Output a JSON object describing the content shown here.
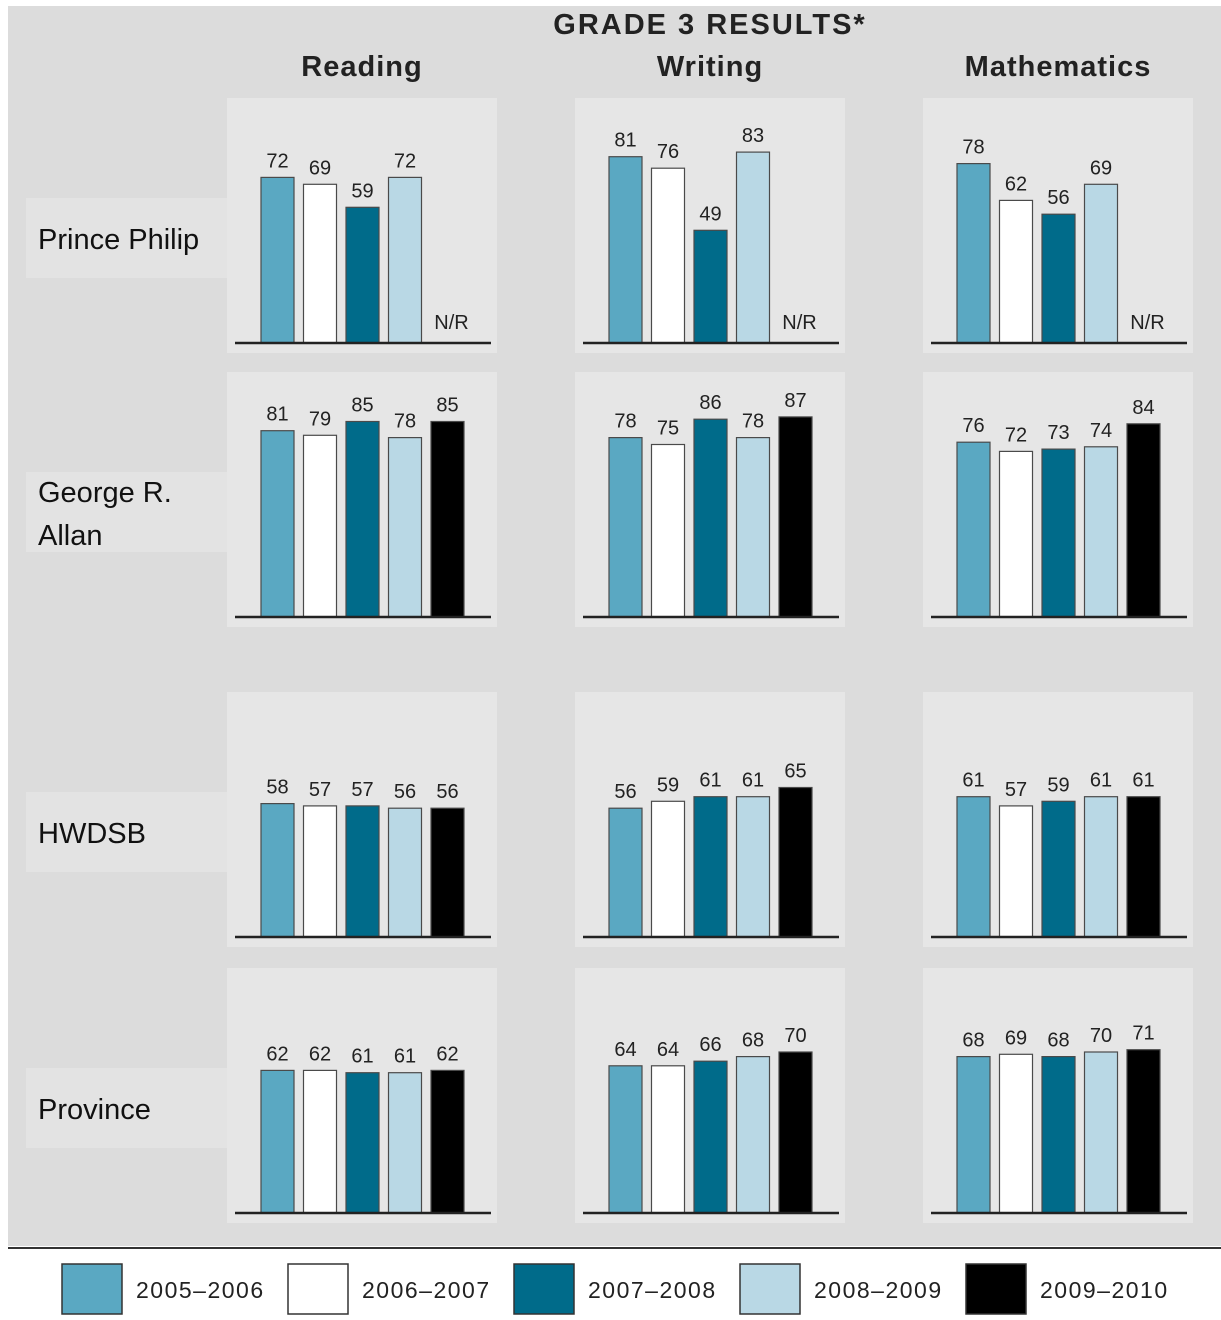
{
  "chart_data": {
    "type": "bar",
    "title": "GRADE 3 RESULTS*",
    "subjects": [
      "Reading",
      "Writing",
      "Mathematics"
    ],
    "rows": [
      "Prince Philip",
      "George R. Allan",
      "HWDSB",
      "Province"
    ],
    "series_names": [
      "2005–2006",
      "2006–2007",
      "2007–2008",
      "2008–2009",
      "2009–2010"
    ],
    "colors": [
      "#5aa8c2",
      "#ffffff",
      "#006b8a",
      "#b9d8e5",
      "#000000"
    ],
    "missing_label": "N/R",
    "ylim": [
      0,
      100
    ],
    "panels": [
      {
        "row": "Prince Philip",
        "subject": "Reading",
        "values": [
          72,
          69,
          59,
          72,
          null
        ]
      },
      {
        "row": "Prince Philip",
        "subject": "Writing",
        "values": [
          81,
          76,
          49,
          83,
          null
        ]
      },
      {
        "row": "Prince Philip",
        "subject": "Mathematics",
        "values": [
          78,
          62,
          56,
          69,
          null
        ]
      },
      {
        "row": "George R. Allan",
        "subject": "Reading",
        "values": [
          81,
          79,
          85,
          78,
          85
        ]
      },
      {
        "row": "George R. Allan",
        "subject": "Writing",
        "values": [
          78,
          75,
          86,
          78,
          87
        ]
      },
      {
        "row": "George R. Allan",
        "subject": "Mathematics",
        "values": [
          76,
          72,
          73,
          74,
          84
        ]
      },
      {
        "row": "HWDSB",
        "subject": "Reading",
        "values": [
          58,
          57,
          57,
          56,
          56
        ]
      },
      {
        "row": "HWDSB",
        "subject": "Writing",
        "values": [
          56,
          59,
          61,
          61,
          65
        ]
      },
      {
        "row": "HWDSB",
        "subject": "Mathematics",
        "values": [
          61,
          57,
          59,
          61,
          61
        ]
      },
      {
        "row": "Province",
        "subject": "Reading",
        "values": [
          62,
          62,
          61,
          61,
          62
        ]
      },
      {
        "row": "Province",
        "subject": "Writing",
        "values": [
          64,
          64,
          66,
          68,
          70
        ]
      },
      {
        "row": "Province",
        "subject": "Mathematics",
        "values": [
          68,
          69,
          68,
          70,
          71
        ]
      }
    ]
  }
}
